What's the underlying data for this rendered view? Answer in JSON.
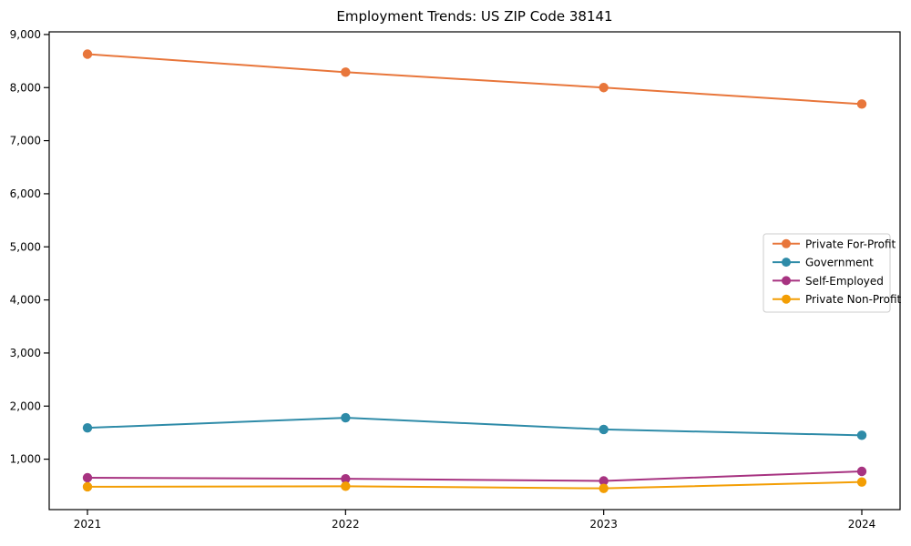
{
  "figure": {
    "title": "Employment Trends: US ZIP Code 38141"
  },
  "chart_data": {
    "type": "line",
    "title": "Employment Trends: US ZIP Code 38141",
    "x_categories": [
      "2021",
      "2022",
      "2023",
      "2024"
    ],
    "series": [
      {
        "name": "Private For-Profit",
        "color": "#e8763b",
        "values": [
          8630,
          8290,
          8000,
          7690
        ]
      },
      {
        "name": "Government",
        "color": "#2e8ba8",
        "values": [
          1590,
          1780,
          1560,
          1450
        ]
      },
      {
        "name": "Self-Employed",
        "color": "#a73381",
        "values": [
          650,
          630,
          590,
          770
        ]
      },
      {
        "name": "Private Non-Profit",
        "color": "#f39e04",
        "values": [
          480,
          490,
          450,
          570
        ]
      }
    ],
    "xlabel": "",
    "ylabel": "",
    "ylim": [
      0,
      9000
    ],
    "yticks": [
      1000,
      2000,
      3000,
      4000,
      5000,
      6000,
      7000,
      8000,
      9000
    ],
    "grid": false,
    "legend_position": "middle-right",
    "marker": "circle",
    "axis_color": "#000000"
  }
}
